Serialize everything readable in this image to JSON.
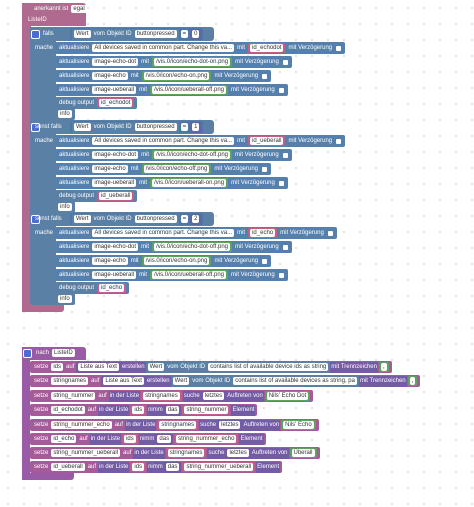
{
  "event_block": {
    "trigger": [
      "anerkannt ist",
      "egal"
    ],
    "list_name": "ListeID",
    "branches": [
      {
        "keyword": "falls",
        "condition": [
          "Wert",
          "vom Objekt ID",
          "buttonpressed",
          "=",
          "0"
        ],
        "do": "mache",
        "statements": [
          [
            "aktualisiere",
            "All devices saved in common part. Change this va...",
            "mit",
            "id_echodot",
            "mit Verzögerung"
          ],
          [
            "aktualisiere",
            "image-echo-dot",
            "mit",
            "/vis.0/icon/echo-dot-on.png",
            "mit Verzögerung"
          ],
          [
            "aktualisiere",
            "image-echo",
            "mit",
            "/vis.0/icon/echo-on.png",
            "mit Verzögerung"
          ],
          [
            "aktualisiere",
            "image-ueberall",
            "mit",
            "/vis.0/icon/ueberall-off.png",
            "mit Verzögerung"
          ]
        ],
        "debug": [
          "debug output",
          "id_echodot"
        ],
        "level": "info"
      },
      {
        "keyword": "sonst falls",
        "condition": [
          "Wert",
          "vom Objekt ID",
          "buttonpressed",
          "=",
          "1"
        ],
        "do": "mache",
        "statements": [
          [
            "aktualisiere",
            "All devices saved in common part. Change this va...",
            "mit",
            "id_ueberall",
            "mit Verzögerung"
          ],
          [
            "aktualisiere",
            "image-echo-dot",
            "mit",
            "/vis.0/icon/echo-dot-off.png",
            "mit Verzögerung"
          ],
          [
            "aktualisiere",
            "image-echo",
            "mit",
            "/vis.0/icon/echo-off.png",
            "mit Verzögerung"
          ],
          [
            "aktualisiere",
            "image-ueberall",
            "mit",
            "/vis.0/icon/ueberall-on.png",
            "mit Verzögerung"
          ]
        ],
        "debug": [
          "debug output",
          "id_ueberall"
        ],
        "level": "info"
      },
      {
        "keyword": "sonst falls",
        "condition": [
          "Wert",
          "vom Objekt ID",
          "buttonpressed",
          "=",
          "2"
        ],
        "do": "mache",
        "statements": [
          [
            "aktualisiere",
            "All devices saved in common part. Change this va...",
            "mit",
            "id_echo",
            "mit Verzögerung"
          ],
          [
            "aktualisiere",
            "image-echo-dot",
            "mit",
            "/vis.0/icon/echo-dot-off.png",
            "mit Verzögerung"
          ],
          [
            "aktualisiere",
            "image-echo",
            "mit",
            "/vis.0/icon/echo-on.png",
            "mit Verzögerung"
          ],
          [
            "aktualisiere",
            "image-ueberall",
            "mit",
            "/vis.0/icon/ueberall-off.png",
            "mit Verzögerung"
          ]
        ],
        "debug": [
          "debug output",
          "id_echo"
        ],
        "level": "info"
      }
    ]
  },
  "procedure_block": {
    "header": [
      "nach",
      "ListeID"
    ],
    "rows": [
      [
        "setze",
        "ids",
        "auf",
        "Liste aus Text",
        "erstellen",
        "Wert",
        "vom Objekt ID",
        "contains list of available device ids as string",
        "mit Trennzeichen",
        ","
      ],
      [
        "setze",
        "stringnames",
        "auf",
        "Liste aus Text",
        "erstellen",
        "Wert",
        "vom Objekt ID",
        "contains list of available devices as string, pa",
        "mit Trennzeichen",
        ","
      ],
      [
        "setze",
        "string_nummer",
        "auf",
        "in der Liste",
        "stringnames",
        "suche",
        "letztes",
        "Auftreten von",
        "Nils' Echo Dot"
      ],
      [
        "setze",
        "id_echodot",
        "auf",
        "in der Liste",
        "ids",
        "nimm",
        "das",
        "string_nummer",
        "Element"
      ],
      [
        "setze",
        "string_nummer_echo",
        "auf",
        "in der Liste",
        "stringnames",
        "suche",
        "letztes",
        "Auftreten von",
        "Nils' Echo"
      ],
      [
        "setze",
        "id_echo",
        "auf",
        "in der Liste",
        "ids",
        "nimm",
        "das",
        "string_nummer_echo",
        "Element"
      ],
      [
        "setze",
        "string_nummer_ueberall",
        "auf",
        "in der Liste",
        "stringnames",
        "suche",
        "letztes",
        "Auftreten von",
        "Überall"
      ],
      [
        "setze",
        "id_ueberall",
        "auf",
        "in der Liste",
        "ids",
        "nimm",
        "das",
        "string_nummer_ueberall",
        "Element"
      ]
    ]
  }
}
